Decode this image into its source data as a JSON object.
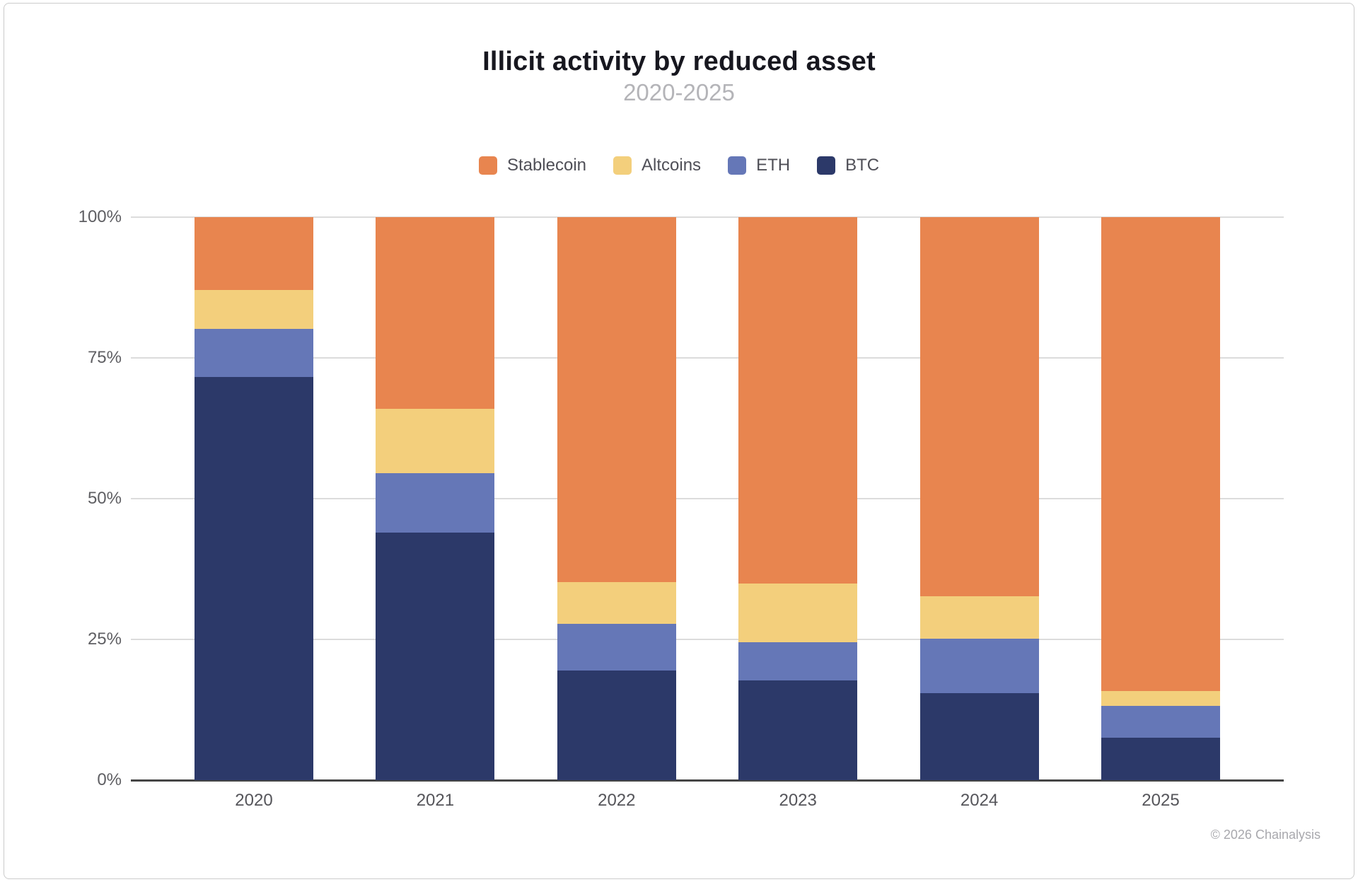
{
  "page": {
    "background": "#ffffff",
    "card_border_color": "#cbcbcb"
  },
  "footer": {
    "copyright": "© 2026 Chainalysis"
  },
  "chart_data": {
    "type": "bar",
    "stacked": true,
    "stack_unit": "percent",
    "title": "Illicit activity by reduced asset",
    "subtitle": "2020-2025",
    "categories": [
      "2020",
      "2021",
      "2022",
      "2023",
      "2024",
      "2025"
    ],
    "series": [
      {
        "name": "Stablecoin",
        "color": "#E8854F",
        "values": [
          12.9,
          34.0,
          64.8,
          65.1,
          67.3,
          84.2
        ]
      },
      {
        "name": "Altcoins",
        "color": "#F3CF7C",
        "values": [
          7.0,
          11.5,
          7.4,
          10.4,
          7.6,
          2.6
        ]
      },
      {
        "name": "ETH",
        "color": "#6577B7",
        "values": [
          8.5,
          10.5,
          8.3,
          6.8,
          9.6,
          5.7
        ]
      },
      {
        "name": "BTC",
        "color": "#2C3969",
        "values": [
          71.6,
          44.0,
          19.5,
          17.7,
          15.5,
          7.5
        ]
      }
    ],
    "stack_order_top_to_bottom": [
      "Stablecoin",
      "Altcoins",
      "ETH",
      "BTC"
    ],
    "legend_order": [
      "Stablecoin",
      "Altcoins",
      "ETH",
      "BTC"
    ],
    "legend_position": "top",
    "grid": true,
    "ylim": [
      0,
      100
    ],
    "y_ticks": [
      {
        "label": "0%",
        "value": 0
      },
      {
        "label": "25%",
        "value": 25
      },
      {
        "label": "50%",
        "value": 50
      },
      {
        "label": "75%",
        "value": 75
      },
      {
        "label": "100%",
        "value": 100
      }
    ],
    "xlabel": "",
    "ylabel": ""
  }
}
